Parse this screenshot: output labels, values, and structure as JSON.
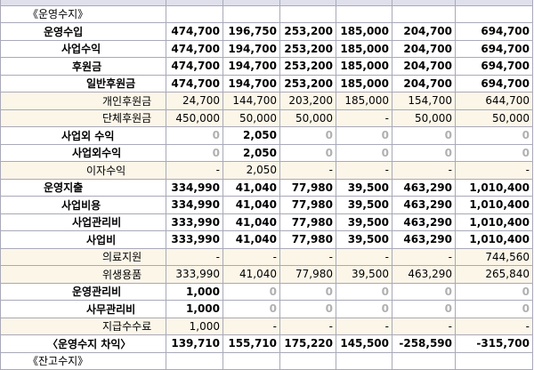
{
  "section_title": "《운영수지》",
  "footer_title": "《잔고수지》",
  "rows": [
    {
      "label": "운영수입",
      "indent": 1,
      "style": "bold",
      "values": [
        "474,700",
        "196,750",
        "253,200",
        "185,000",
        "204,700",
        "694,700"
      ]
    },
    {
      "label": "사업수익",
      "indent": 2,
      "style": "bold",
      "values": [
        "474,700",
        "194,700",
        "253,200",
        "185,000",
        "204,700",
        "694,700"
      ]
    },
    {
      "label": "후원금",
      "indent": 3,
      "style": "bold",
      "values": [
        "474,700",
        "194,700",
        "253,200",
        "185,000",
        "204,700",
        "694,700"
      ]
    },
    {
      "label": "일반후원금",
      "indent": 4,
      "style": "bold",
      "values": [
        "474,700",
        "194,700",
        "253,200",
        "185,000",
        "204,700",
        "694,700"
      ]
    },
    {
      "label": "개인후원금",
      "indent": 5,
      "style": "light",
      "values": [
        "24,700",
        "144,700",
        "203,200",
        "185,000",
        "154,700",
        "644,700"
      ]
    },
    {
      "label": "단체후원금",
      "indent": 5,
      "style": "light",
      "values": [
        "450,000",
        "50,000",
        "50,000",
        "-",
        "50,000",
        "50,000"
      ]
    },
    {
      "label": "사업외 수익",
      "indent": 2,
      "style": "bold",
      "values": [
        "0",
        "2,050",
        "0",
        "0",
        "0",
        "0"
      ]
    },
    {
      "label": "사업외수익",
      "indent": 3,
      "style": "bold",
      "values": [
        "0",
        "2,050",
        "0",
        "0",
        "0",
        "0"
      ]
    },
    {
      "label": "이자수익",
      "indent": 4,
      "style": "light",
      "values": [
        "-",
        "2,050",
        "-",
        "-",
        "-",
        "-"
      ]
    },
    {
      "label": "운영지출",
      "indent": 1,
      "style": "bold",
      "values": [
        "334,990",
        "41,040",
        "77,980",
        "39,500",
        "463,290",
        "1,010,400"
      ]
    },
    {
      "label": "사업비용",
      "indent": 2,
      "style": "bold",
      "values": [
        "334,990",
        "41,040",
        "77,980",
        "39,500",
        "463,290",
        "1,010,400"
      ]
    },
    {
      "label": "사업관리비",
      "indent": 3,
      "style": "bold",
      "values": [
        "333,990",
        "41,040",
        "77,980",
        "39,500",
        "463,290",
        "1,010,400"
      ]
    },
    {
      "label": "사업비",
      "indent": 4,
      "style": "bold",
      "values": [
        "333,990",
        "41,040",
        "77,980",
        "39,500",
        "463,290",
        "1,010,400"
      ]
    },
    {
      "label": "의료지원",
      "indent": 5,
      "style": "light",
      "values": [
        "-",
        "-",
        "-",
        "-",
        "-",
        "744,560"
      ]
    },
    {
      "label": "위생용품",
      "indent": 5,
      "style": "light",
      "values": [
        "333,990",
        "41,040",
        "77,980",
        "39,500",
        "463,290",
        "265,840"
      ]
    },
    {
      "label": "운영관리비",
      "indent": 3,
      "style": "bold",
      "values": [
        "1,000",
        "0",
        "0",
        "0",
        "0",
        "0"
      ]
    },
    {
      "label": "사무관리비",
      "indent": 4,
      "style": "bold",
      "values": [
        "1,000",
        "0",
        "0",
        "0",
        "0",
        "0"
      ]
    },
    {
      "label": "지급수수료",
      "indent": 5,
      "style": "light",
      "values": [
        "1,000",
        "-",
        "-",
        "-",
        "-",
        "-"
      ]
    },
    {
      "label": "〈운영수지 차익〉",
      "indent": 1,
      "style": "bold",
      "values": [
        "139,710",
        "155,710",
        "175,220",
        "145,500",
        "-258,590",
        "-315,700"
      ]
    }
  ]
}
